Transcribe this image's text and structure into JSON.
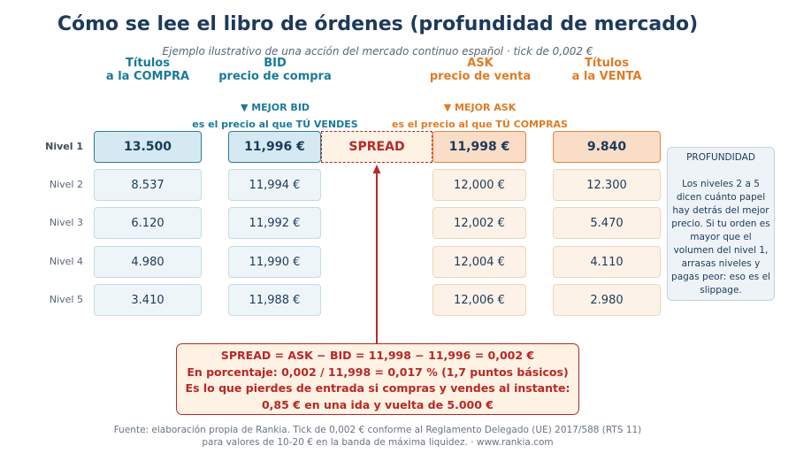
{
  "title": "Cómo se lee el libro de órdenes (profundidad de mercado)",
  "subtitle": "Ejemplo ilustrativo de una acción del mercado continuo español  ·  tick de 0,002 €",
  "headers": {
    "titulos_compra": [
      "Títulos",
      "a la COMPRA"
    ],
    "bid": [
      "BID",
      "precio de compra"
    ],
    "ask": [
      "ASK",
      "precio de venta"
    ],
    "titulos_venta": [
      "Títulos",
      "a la VENTA"
    ]
  },
  "notes": {
    "bid": [
      "▼ MEJOR BID",
      "es el precio al que TÚ VENDES"
    ],
    "ask": [
      "▼ MEJOR ASK",
      "es el precio al que TÚ COMPRAS"
    ]
  },
  "levels": [
    {
      "label": "Nivel 1",
      "buy_qty": "13.500",
      "bid": "11,996 €",
      "ask": "11,998 €",
      "sell_qty": "9.840"
    },
    {
      "label": "Nivel 2",
      "buy_qty": "8.537",
      "bid": "11,994 €",
      "ask": "12,000 €",
      "sell_qty": "12.300"
    },
    {
      "label": "Nivel 3",
      "buy_qty": "6.120",
      "bid": "11,992 €",
      "ask": "12,002 €",
      "sell_qty": "5.470"
    },
    {
      "label": "Nivel 4",
      "buy_qty": "4.980",
      "bid": "11,990 €",
      "ask": "12,004 €",
      "sell_qty": "4.110"
    },
    {
      "label": "Nivel 5",
      "buy_qty": "3.410",
      "bid": "11,988 €",
      "ask": "12,006 €",
      "sell_qty": "2.980"
    }
  ],
  "spread_label": "SPREAD",
  "depth_box": {
    "title": "PROFUNDIDAD",
    "body": "Los niveles 2 a 5 dicen cuánto papel hay detrás del mejor precio. Si tu orden es mayor que el volumen del nivel 1, arrasas niveles y pagas peor: eso es el slippage."
  },
  "formula": [
    "SPREAD = ASK − BID = 11,998 − 11,996 = 0,002 €",
    "En porcentaje: 0,002 / 11,998 = 0,017 %  (1,7 puntos básicos)",
    "Es lo que pierdes de entrada si compras y vendes al instante:",
    "0,85 € en una ida y vuelta de 5.000 €"
  ],
  "footer": [
    "Fuente: elaboración propia de Rankia. Tick de 0,002 € conforme al Reglamento Delegado (UE) 2017/588 (RTS 11)",
    "para valores de 10-20 € en la banda de máxima liquidez.  ·  www.rankia.com"
  ],
  "colors": {
    "title": "#1e3a5a",
    "bid": "#1b7a99",
    "ask": "#e07b26",
    "spread": "#b82828"
  }
}
